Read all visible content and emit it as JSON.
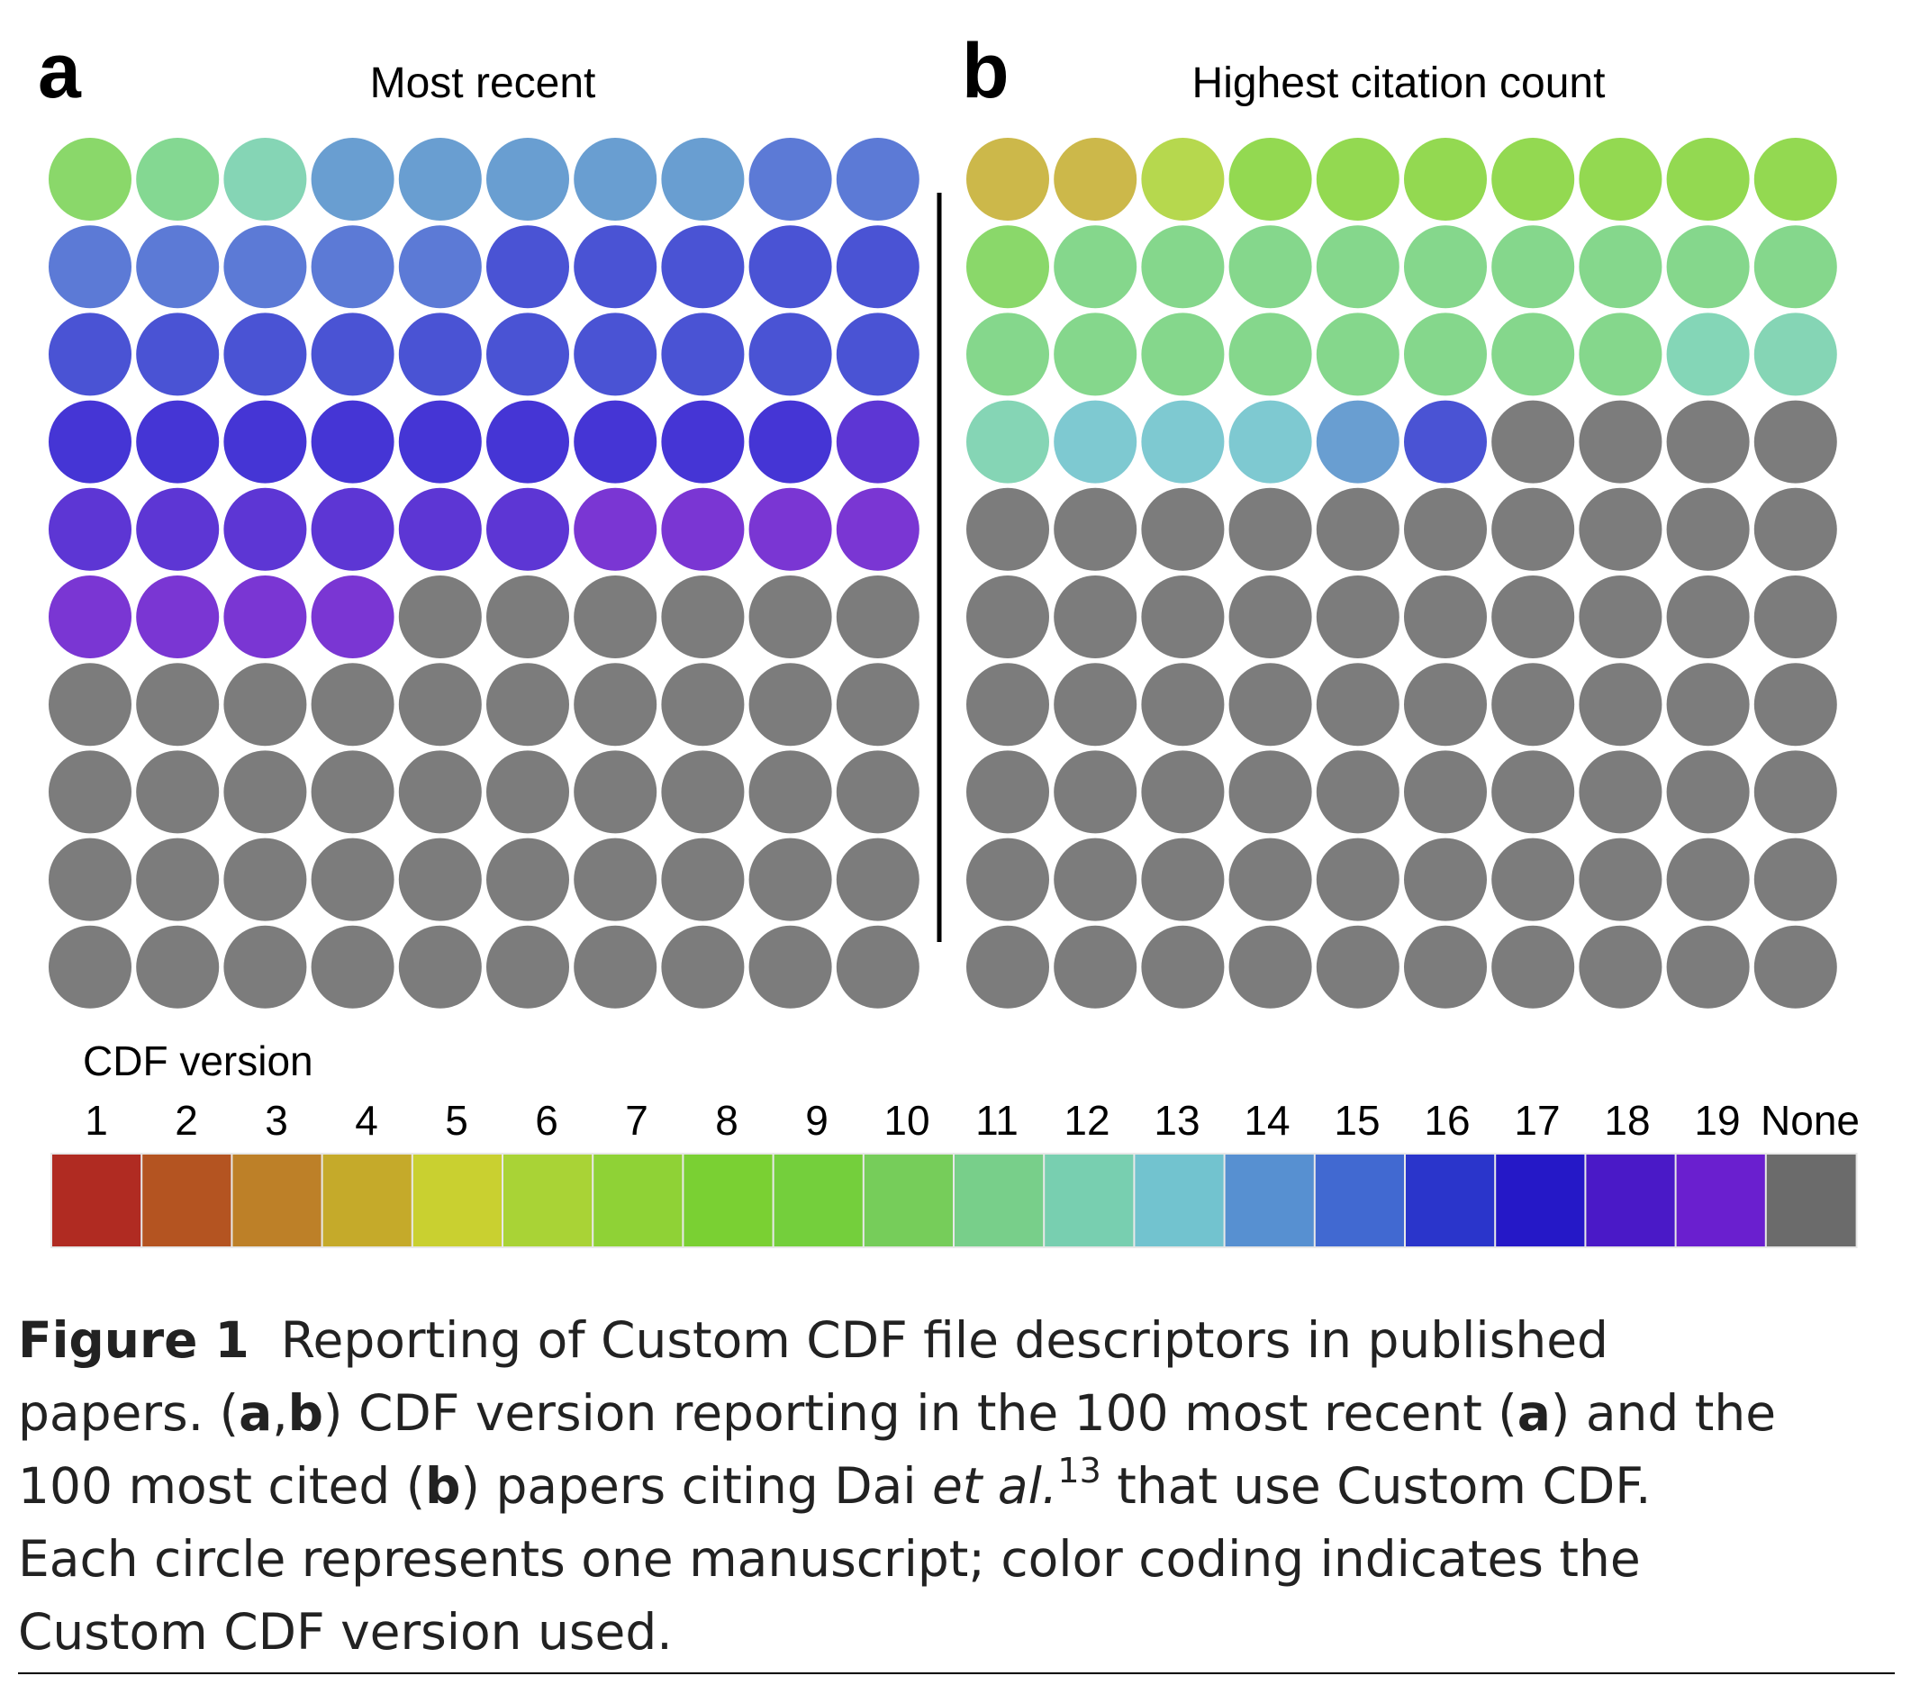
{
  "chart_data": [
    {
      "type": "waffle",
      "panel_label": "a",
      "title": "Most recent",
      "rows": 10,
      "cols": 10,
      "fill_order": "row-major, left to right, top to bottom",
      "category_counts": {
        "8": 1,
        "9": 1,
        "12": 1,
        "14": 5,
        "15": 7,
        "16": 15,
        "17": 9,
        "18": 7,
        "19": 8,
        "None": 46
      }
    },
    {
      "type": "waffle",
      "panel_label": "b",
      "title": "Highest citation count",
      "rows": 10,
      "cols": 10,
      "fill_order": "row-major, left to right, top to bottom",
      "category_counts": {
        "4": 2,
        "5": 1,
        "7": 7,
        "8": 1,
        "10": 17,
        "11": 1,
        "12": 2,
        "13": 3,
        "14": 1,
        "16": 1,
        "None": 64
      }
    }
  ],
  "legend": {
    "title": "CDF version",
    "categories": [
      "1",
      "2",
      "3",
      "4",
      "5",
      "6",
      "7",
      "8",
      "9",
      "10",
      "11",
      "12",
      "13",
      "14",
      "15",
      "16",
      "17",
      "18",
      "19",
      "None"
    ],
    "colors": [
      "#b02b22",
      "#b45421",
      "#bd8028",
      "#c5aa2a",
      "#c9d030",
      "#a9d336",
      "#8fd236",
      "#7ad033",
      "#74cf3c",
      "#76cd5a",
      "#78cf8a",
      "#78cfb0",
      "#72c3cf",
      "#5790d1",
      "#4169d1",
      "#2a35cb",
      "#2518c7",
      "#4a19c7",
      "#6a1fcf",
      "#6b6b6b"
    ]
  },
  "dot_colors": {
    "4": "#ccb84a",
    "5": "#b6d84e",
    "7": "#93d951",
    "8": "#8ad86a",
    "9": "#84d892",
    "10": "#85d78c",
    "11": "#84d6b7",
    "12": "#85d5b5",
    "13": "#7ec9d1",
    "14": "#699ed1",
    "15": "#5c7ad6",
    "16": "#4a53d4",
    "17": "#4535d5",
    "18": "#5d36d4",
    "19": "#7a36d3",
    "None": "#7c7c7c"
  },
  "caption": {
    "label": "Figure 1",
    "lines": [
      {
        "before": "Reporting of Custom CDF file descriptors in published"
      },
      {
        "before": "papers. (",
        "b1": "a",
        "mid1": ",",
        "b2": "b",
        "after": ") CDF version reporting in the 100 most recent (",
        "b3": "a",
        "end": ") and the"
      },
      {
        "before": "100 most cited (",
        "b1": "b",
        "mid1": ") papers citing Dai ",
        "italic": "et al.",
        "sup": "13",
        "end": " that use Custom CDF."
      },
      {
        "before": "Each circle represents one manuscript; color coding indicates the"
      },
      {
        "before": "Custom CDF version used."
      }
    ]
  }
}
